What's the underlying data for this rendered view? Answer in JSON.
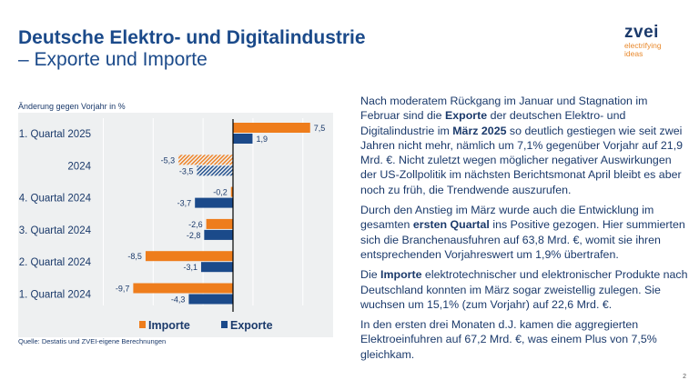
{
  "header": {
    "title_line1": "Deutsche Elektro- und Digitalindustrie",
    "title_line2": "– Exporte und Importe"
  },
  "logo": {
    "word": "zvei",
    "tagline_1": "electrifying",
    "tagline_2": "ideas"
  },
  "colors": {
    "importe": "#ee7d1c",
    "exporte": "#1b4a8a",
    "title": "#1b4a8a",
    "panel": "#eef0f1"
  },
  "chart_data": {
    "type": "bar",
    "orientation": "horizontal",
    "ylabel": "Änderung gegen Vorjahr in %",
    "categories": [
      "1. Quartal 2025",
      "2024",
      "4. Quartal 2024",
      "3. Quartal 2024",
      "2. Quartal 2024",
      "1. Quartal 2024"
    ],
    "series": [
      {
        "name": "Importe",
        "values": [
          7.5,
          -5.3,
          -0.2,
          -2.6,
          -8.5,
          -9.7
        ]
      },
      {
        "name": "Exporte",
        "values": [
          1.9,
          -3.5,
          -3.7,
          -2.8,
          -3.1,
          -4.3
        ]
      }
    ],
    "value_labels": {
      "Importe": [
        "7,5",
        "-5,3",
        "-0,2",
        "-2,6",
        "-8,5",
        "-9,7"
      ],
      "Exporte": [
        "1,9",
        "-3,5",
        "-3,7",
        "-2,8",
        "-3,1",
        "-4,3"
      ]
    },
    "hatched_category": "2024",
    "xlim": [
      -10,
      9
    ],
    "grid": true,
    "legend": "bottom",
    "source": "Quelle: Destatis und ZVEI-eigene Berechnungen"
  },
  "body": {
    "p1": [
      "Nach moderatem Rückgang im Januar und Stagnation im Februar sind die ",
      "Exporte",
      " der deutschen Elektro- und Digitalindustrie im ",
      "März 2025",
      " so deutlich gestiegen wie seit zwei Jahren nicht mehr, nämlich um 7,1% gegenüber Vorjahr auf 21,9 Mrd. €. Nicht zuletzt wegen möglicher negativer Auswirkungen der US-Zollpolitik im nächsten Berichtsmonat April bleibt es aber noch zu früh, die Trendwende auszurufen."
    ],
    "p2": [
      "Durch den Anstieg im März wurde auch die Entwicklung im gesamten ",
      "ersten Quartal",
      " ins Positive gezogen. Hier summierten sich die Branchenausfuhren auf 63,8 Mrd. €, womit sie ihren entsprechenden Vorjahreswert um 1,9% übertrafen."
    ],
    "p3": [
      "Die ",
      "Importe",
      " elektrotechnischer und elektronischer Produkte nach Deutschland konnten im März sogar zweistellig zulegen. Sie wuchsen um 15,1% (zum Vorjahr) auf 22,6 Mrd. €."
    ],
    "p4": "In den ersten drei Monaten d.J. kamen die aggregierten Elektroeinfuhren auf 67,2 Mrd. €, was einem Plus von 7,5% gleichkam."
  },
  "page_number": "2"
}
